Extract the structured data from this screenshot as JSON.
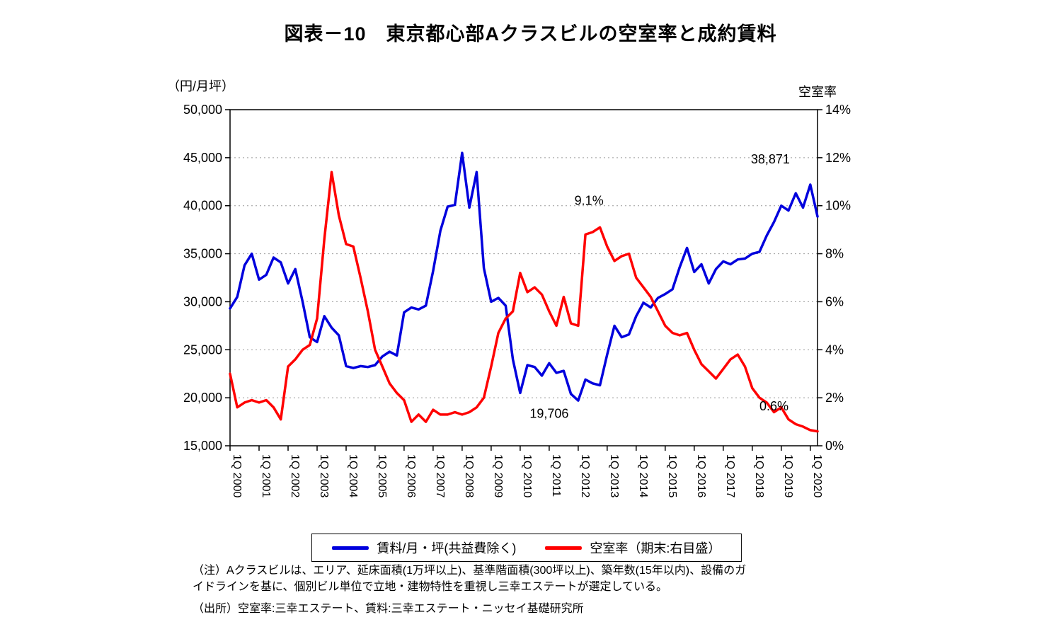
{
  "title": "図表－10　東京都心部Aクラスビルの空室率と成約賃料",
  "chart_data": {
    "type": "line",
    "x_tick_labels": [
      "1Q 2000",
      "1Q 2001",
      "1Q 2002",
      "1Q 2003",
      "1Q 2004",
      "1Q 2005",
      "1Q 2006",
      "1Q 2007",
      "1Q 2008",
      "1Q 2009",
      "1Q 2010",
      "1Q 2011",
      "1Q 2012",
      "1Q 2013",
      "1Q 2014",
      "1Q 2015",
      "1Q 2016",
      "1Q 2017",
      "1Q 2018",
      "1Q 2019",
      "1Q 2020"
    ],
    "x_ticks_every_n_points": 4,
    "grid": "horizontal-dotted",
    "left_axis": {
      "label": "（円/月坪）",
      "min": 15000,
      "max": 50000,
      "step": 5000,
      "tick_labels": [
        "50,000",
        "45,000",
        "40,000",
        "35,000",
        "30,000",
        "25,000",
        "20,000",
        "15,000"
      ]
    },
    "right_axis": {
      "label": "空室率",
      "min": 0,
      "max": 14,
      "step": 2,
      "tick_labels": [
        "14%",
        "12%",
        "10%",
        "8%",
        "6%",
        "4%",
        "2%",
        "0%"
      ]
    },
    "series": [
      {
        "name": "賃料/月・坪(共益費除く)",
        "color": "#0000dd",
        "axis": "left",
        "values": [
          29300,
          30500,
          33800,
          35000,
          32300,
          32800,
          34600,
          34100,
          31900,
          33400,
          30000,
          26300,
          25800,
          28500,
          27300,
          26500,
          23300,
          23100,
          23300,
          23200,
          23400,
          24300,
          24800,
          24400,
          28900,
          29400,
          29200,
          29600,
          33200,
          37400,
          39900,
          40100,
          45500,
          39800,
          43500,
          33500,
          30000,
          30400,
          29600,
          24000,
          20500,
          23400,
          23200,
          22300,
          23600,
          22600,
          22800,
          20400,
          19706,
          21900,
          21500,
          21300,
          24500,
          27500,
          26300,
          26600,
          28500,
          29900,
          29400,
          30400,
          30800,
          31300,
          33600,
          35600,
          33100,
          33900,
          31900,
          33400,
          34200,
          33900,
          34400,
          34500,
          35000,
          35200,
          36900,
          38300,
          40000,
          39500,
          41300,
          39800,
          42200,
          38871
        ]
      },
      {
        "name": "空室率（期末:右目盛）",
        "color": "#ff0000",
        "axis": "right",
        "values": [
          3.0,
          1.6,
          1.8,
          1.9,
          1.8,
          1.9,
          1.6,
          1.1,
          3.3,
          3.6,
          4.0,
          4.2,
          5.3,
          8.6,
          11.4,
          9.6,
          8.4,
          8.3,
          7.0,
          5.6,
          4.0,
          3.3,
          2.6,
          2.2,
          1.9,
          1.0,
          1.3,
          1.0,
          1.5,
          1.3,
          1.3,
          1.4,
          1.3,
          1.4,
          1.6,
          2.0,
          3.3,
          4.7,
          5.3,
          5.6,
          7.2,
          6.4,
          6.6,
          6.3,
          5.6,
          5.0,
          6.2,
          5.1,
          5.0,
          8.8,
          8.9,
          9.1,
          8.3,
          7.7,
          7.9,
          8.0,
          7.0,
          6.6,
          6.2,
          5.6,
          5.0,
          4.7,
          4.6,
          4.7,
          4.0,
          3.4,
          3.1,
          2.8,
          3.2,
          3.6,
          3.8,
          3.3,
          2.4,
          2.0,
          1.8,
          1.4,
          1.6,
          1.1,
          0.9,
          0.8,
          0.65,
          0.6
        ]
      }
    ],
    "annotations": [
      {
        "text": "38,871",
        "x_index": 74.5,
        "value": 44400
      },
      {
        "text": "9.1%",
        "x_index": 49.5,
        "value": 40100
      },
      {
        "text": "19,706",
        "x_index": 44.0,
        "value": 17900
      },
      {
        "text": "0.6%",
        "x_index": 75.0,
        "value": 18700
      }
    ]
  },
  "legend": {
    "items": [
      {
        "label": "賃料/月・坪(共益費除く)",
        "color": "#0000dd"
      },
      {
        "label": "空室率（期末:右目盛）",
        "color": "#ff0000"
      }
    ]
  },
  "notes": {
    "line1": "（注）Aクラスビルは、エリア、延床面積(1万坪以上)、基準階面積(300坪以上)、築年数(15年以内)、設備のガ",
    "line2": "イドラインを基に、個別ビル単位で立地・建物特性を重視し三幸エステートが選定している。",
    "source": "（出所）空室率:三幸エステート、賃料:三幸エステート・ニッセイ基礎研究所"
  }
}
